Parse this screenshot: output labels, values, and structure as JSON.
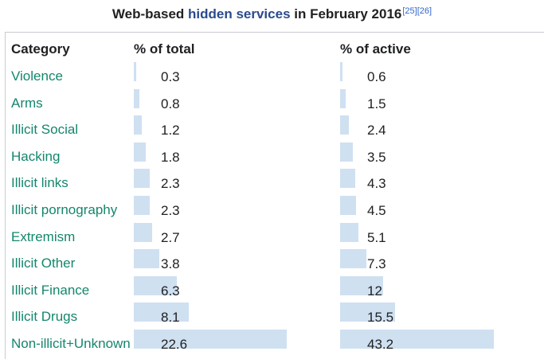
{
  "table": {
    "title_prefix": "Web-based ",
    "title_link": "hidden services",
    "title_suffix": " in February 2016",
    "refs": "[25][26]",
    "headers": {
      "category": "Category",
      "total": "% of total",
      "active": "% of active"
    },
    "rows": [
      {
        "category": "Violence",
        "total": "0.3",
        "active": "0.6"
      },
      {
        "category": "Arms",
        "total": "0.8",
        "active": "1.5"
      },
      {
        "category": "Illicit Social",
        "total": "1.2",
        "active": "2.4"
      },
      {
        "category": "Hacking",
        "total": "1.8",
        "active": "3.5"
      },
      {
        "category": "Illicit links",
        "total": "2.3",
        "active": "4.3"
      },
      {
        "category": "Illicit pornography",
        "total": "2.3",
        "active": "4.5"
      },
      {
        "category": "Extremism",
        "total": "2.7",
        "active": "5.1"
      },
      {
        "category": "Illicit Other",
        "total": "3.8",
        "active": "7.3"
      },
      {
        "category": "Illicit Finance",
        "total": "6.3",
        "active": "12"
      },
      {
        "category": "Illicit Drugs",
        "total": "8.1",
        "active": "15.5"
      },
      {
        "category": "Non-illicit+Unknown",
        "total": "22.6",
        "active": "43.2"
      }
    ]
  },
  "colors": {
    "category_link": "#14866d",
    "bar": "#cfe0f1",
    "title_link": "#2a4b8d",
    "ref_link": "#3366cc"
  }
}
